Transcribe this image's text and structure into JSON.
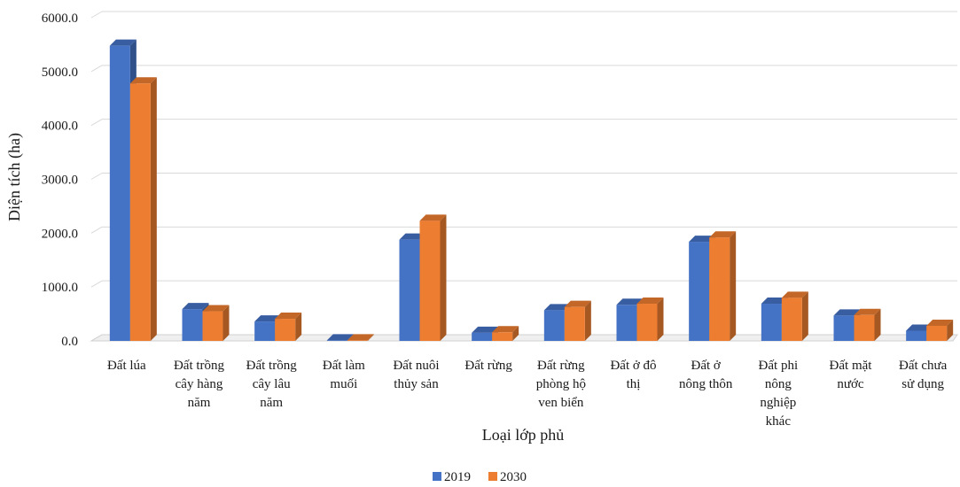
{
  "chart_data": {
    "type": "bar",
    "title": "",
    "xlabel": "Loại lớp phủ",
    "ylabel": "Diện tích (ha)",
    "ylim": [
      0,
      6000
    ],
    "yticks": [
      "0.0",
      "1000.0",
      "2000.0",
      "3000.0",
      "4000.0",
      "5000.0",
      "6000.0"
    ],
    "grid": true,
    "legend_position": "bottom",
    "categories": [
      [
        "Đất lúa"
      ],
      [
        "Đất trồng",
        "cây hàng",
        "năm"
      ],
      [
        "Đất trồng",
        "cây lâu",
        "năm"
      ],
      [
        "Đất làm",
        "muối"
      ],
      [
        "Đất nuôi",
        "thủy sản"
      ],
      [
        "Đất rừng"
      ],
      [
        "Đất rừng",
        "phòng hộ",
        "ven biển"
      ],
      [
        "Đất ở đô",
        "thị"
      ],
      [
        "Đất ở",
        "nông thôn"
      ],
      [
        "Đất phi",
        "nông",
        "nghiệp",
        "khác"
      ],
      [
        "Đất mặt",
        "nước"
      ],
      [
        "Đất chưa",
        "sử dụng"
      ]
    ],
    "series": [
      {
        "name": "2019",
        "color": "#4472c4",
        "values": [
          5480,
          590,
          360,
          10,
          1880,
          150,
          570,
          670,
          1840,
          690,
          470,
          190
        ]
      },
      {
        "name": "2030",
        "color": "#ed7d31",
        "values": [
          4780,
          550,
          410,
          10,
          2230,
          160,
          630,
          690,
          1920,
          800,
          480,
          280
        ]
      }
    ]
  }
}
